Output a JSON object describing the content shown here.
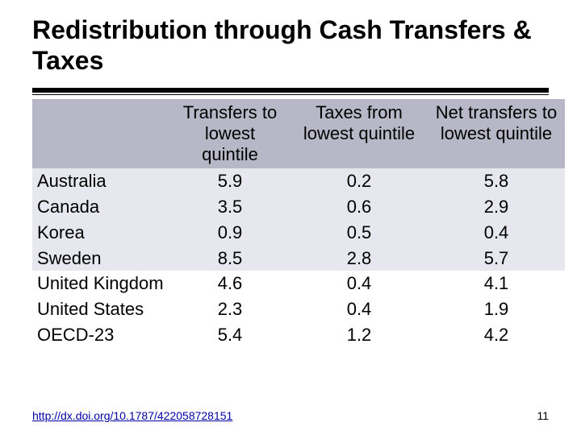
{
  "title": "Redistribution through Cash Transfers & Taxes",
  "table": {
    "type": "table",
    "header_bg": "#b7b7c7",
    "band_a_bg": "#e7e7ef",
    "band_b_bg": "#ffffff",
    "text_color": "#000000",
    "font_size": 22,
    "columns": [
      {
        "label": "",
        "align": "left"
      },
      {
        "label": "Transfers to lowest quintile",
        "align": "center"
      },
      {
        "label": "Taxes from lowest quintile",
        "align": "center"
      },
      {
        "label": "Net transfers to lowest quintile",
        "align": "center"
      }
    ],
    "rows": [
      {
        "country": "Australia",
        "transfers": "5.9",
        "taxes": "0.2",
        "net": "5.8",
        "band": "a"
      },
      {
        "country": "Canada",
        "transfers": "3.5",
        "taxes": "0.6",
        "net": "2.9",
        "band": "a"
      },
      {
        "country": "Korea",
        "transfers": "0.9",
        "taxes": "0.5",
        "net": "0.4",
        "band": "a"
      },
      {
        "country": "Sweden",
        "transfers": "8.5",
        "taxes": "2.8",
        "net": "5.7",
        "band": "a"
      },
      {
        "country": "United Kingdom",
        "transfers": "4.6",
        "taxes": "0.4",
        "net": "4.1",
        "band": "b"
      },
      {
        "country": "United States",
        "transfers": "2.3",
        "taxes": "0.4",
        "net": "1.9",
        "band": "b"
      },
      {
        "country": "OECD-23",
        "transfers": "5.4",
        "taxes": "1.2",
        "net": "4.2",
        "band": "b"
      }
    ]
  },
  "footer_link": "http://dx.doi.org/10.1787/422058728151",
  "page_number": "11",
  "colors": {
    "link": "#0000aa",
    "rule": "#000000",
    "background": "#ffffff"
  }
}
